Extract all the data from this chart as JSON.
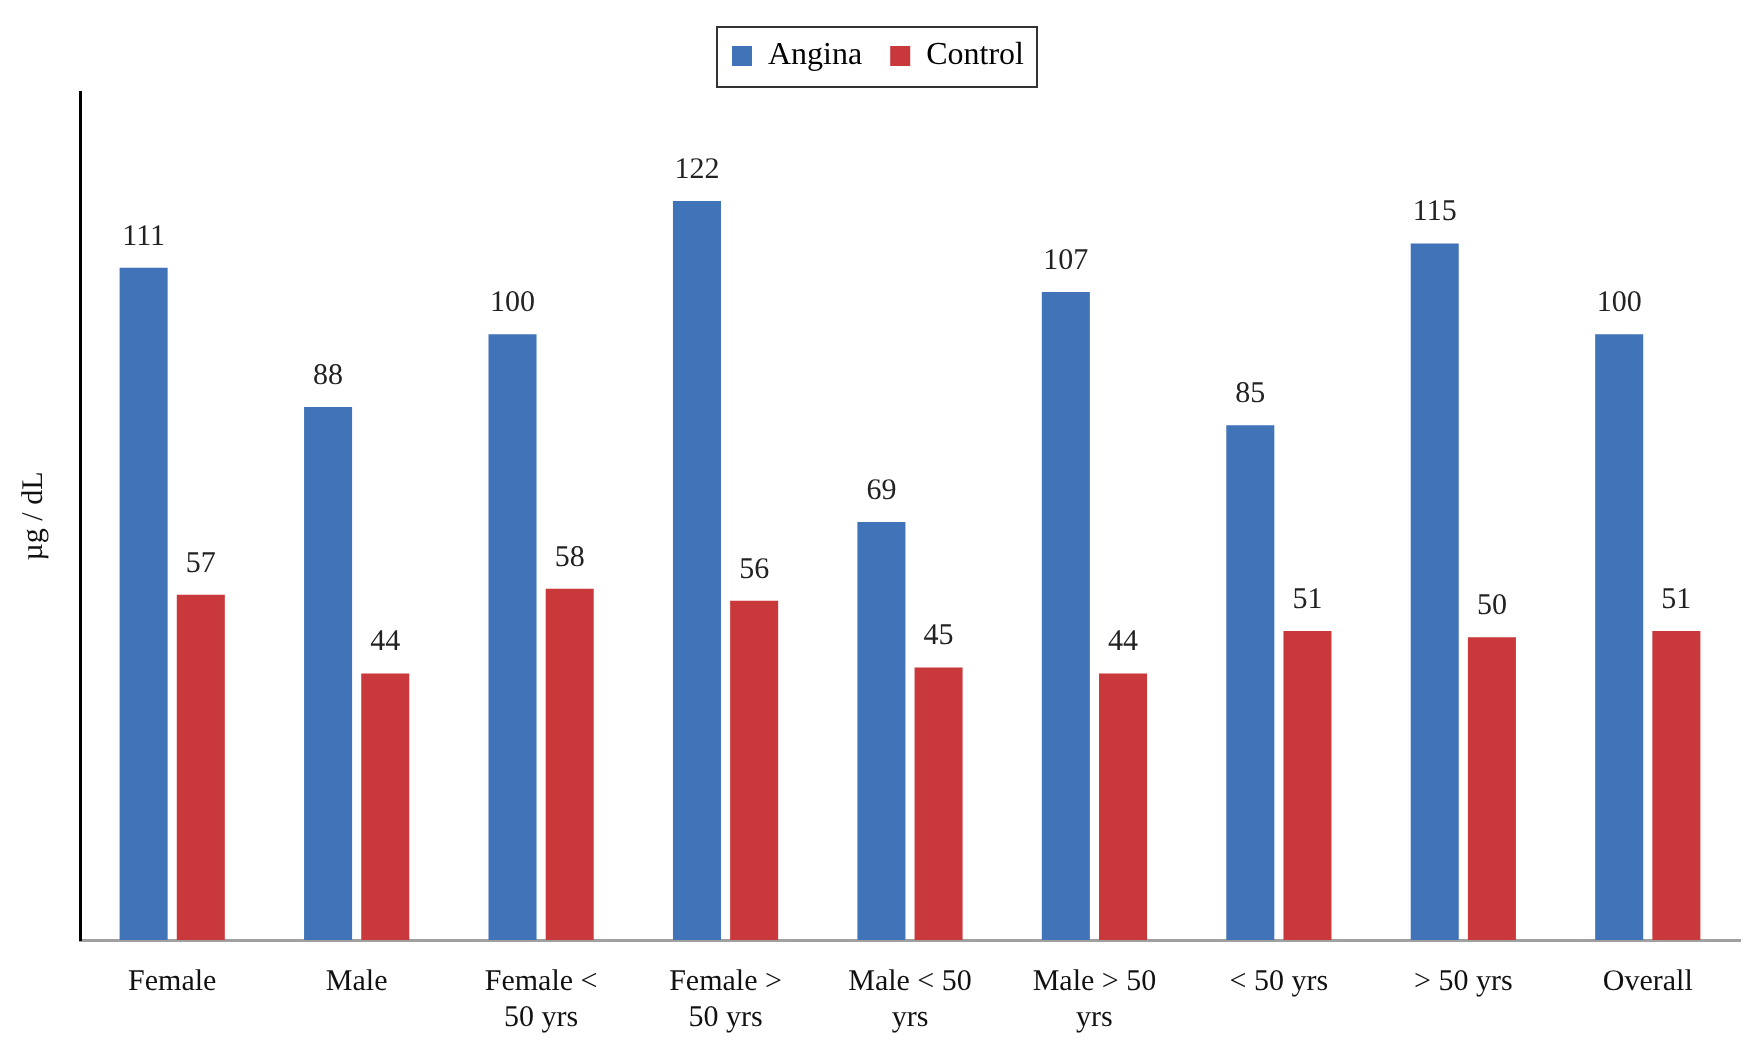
{
  "chart_data": {
    "type": "bar",
    "ylabel": "µg / dL",
    "categories": [
      "Female",
      "Male",
      "Female < 50 yrs",
      "Female > 50 yrs",
      "Male < 50 yrs",
      "Male > 50 yrs",
      "< 50 yrs",
      "> 50 yrs",
      "Overall"
    ],
    "series": [
      {
        "name": "Angina",
        "color": "#4173b8",
        "values": [
          111,
          88,
          100,
          122,
          69,
          107,
          85,
          115,
          100
        ]
      },
      {
        "name": "Control",
        "color": "#c9393b",
        "values": [
          57,
          44,
          58,
          56,
          45,
          44,
          51,
          50,
          51
        ]
      }
    ],
    "data_labels": true,
    "legend": "top",
    "tick_labels": "x"
  }
}
